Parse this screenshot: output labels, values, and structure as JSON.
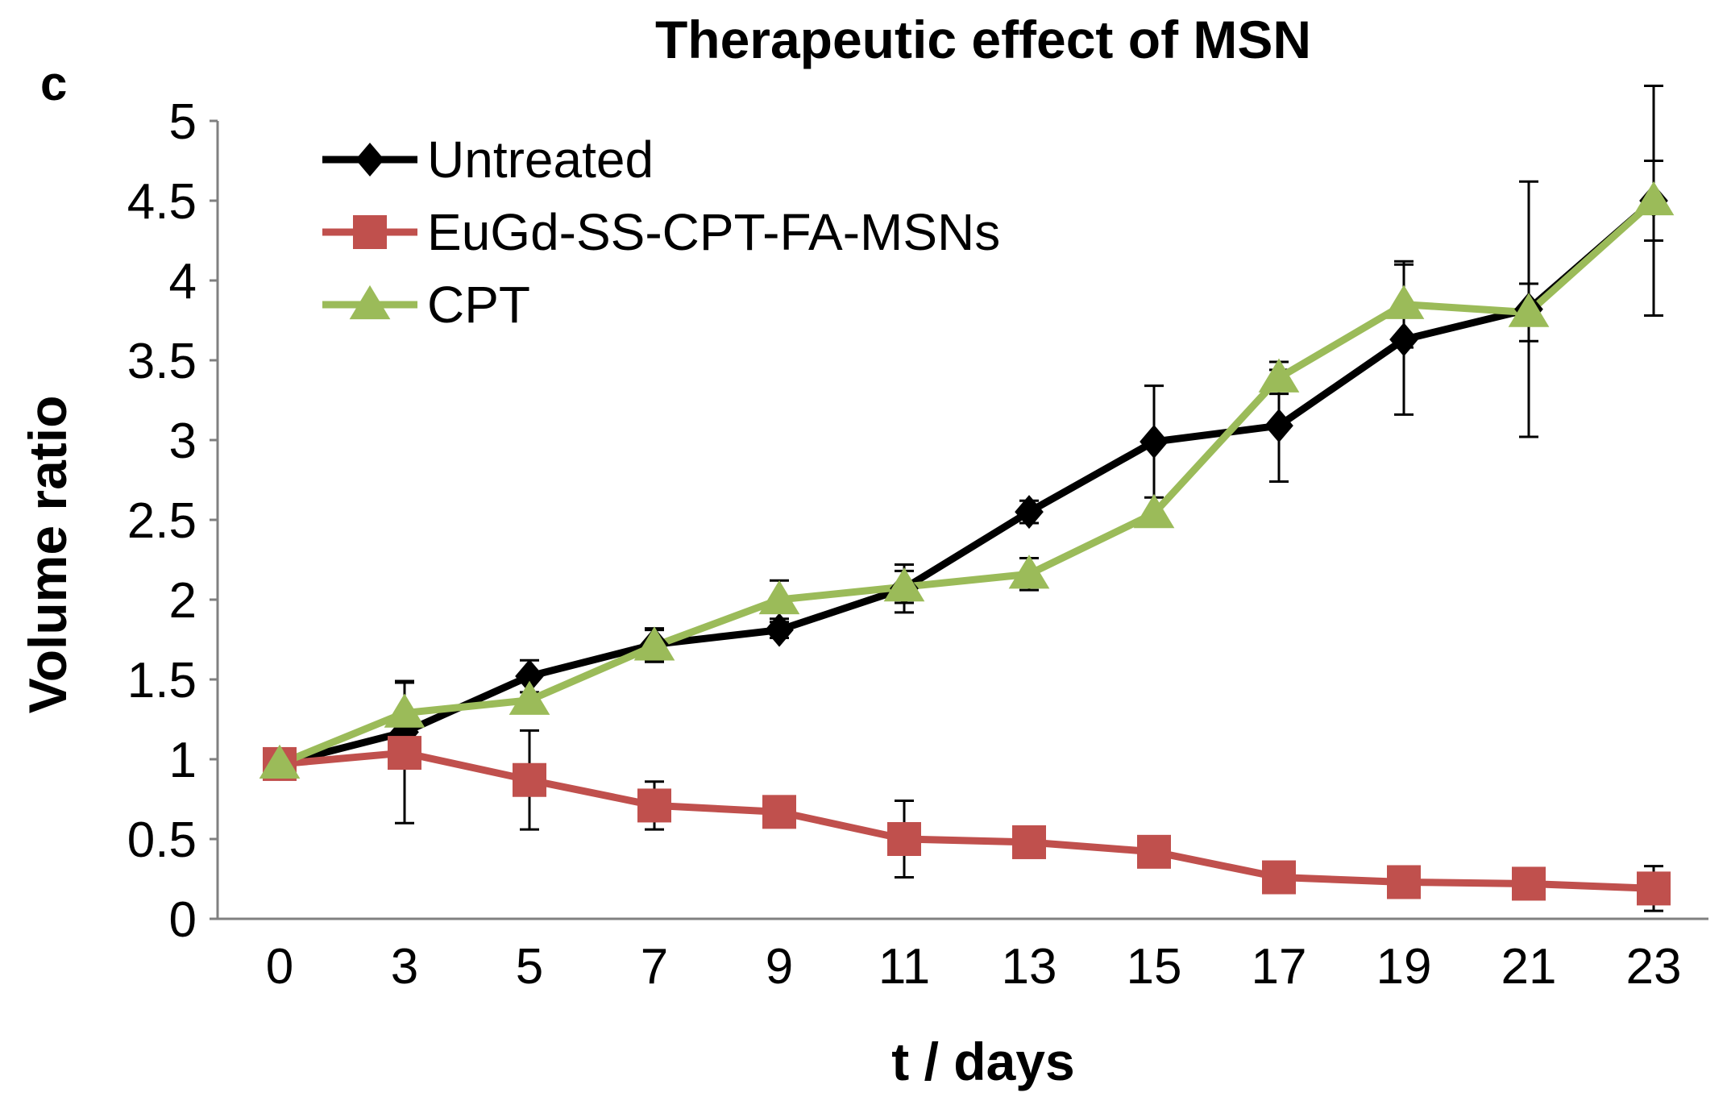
{
  "chart_data": {
    "type": "line",
    "panel_label": "c",
    "title": "Therapeutic effect of MSN",
    "xlabel": "t / days",
    "ylabel": "Volume ratio",
    "x": [
      0,
      3,
      5,
      7,
      9,
      11,
      13,
      15,
      17,
      19,
      21,
      23
    ],
    "x_tick_labels": [
      "0",
      "3",
      "5",
      "7",
      "9",
      "11",
      "13",
      "15",
      "17",
      "19",
      "21",
      "23"
    ],
    "ylim": [
      0,
      5
    ],
    "y_ticks": [
      0,
      0.5,
      1,
      1.5,
      2,
      2.5,
      3,
      3.5,
      4,
      4.5,
      5
    ],
    "y_tick_labels": [
      "0",
      "0.5",
      "1",
      "1.5",
      "2",
      "2.5",
      "3",
      "3.5",
      "4",
      "4.5",
      "5"
    ],
    "grid": false,
    "legend_position": "top-left",
    "series": [
      {
        "name": "Untreated",
        "color": "#000000",
        "marker": "diamond",
        "values": [
          0.97,
          1.17,
          1.52,
          1.72,
          1.81,
          2.07,
          2.55,
          2.99,
          3.09,
          3.63,
          3.82,
          4.5
        ],
        "errors": [
          0.0,
          0.0,
          0.1,
          0.1,
          0.05,
          0.15,
          0.07,
          0.35,
          0.35,
          0.47,
          0.8,
          0.72
        ]
      },
      {
        "name": "EuGd-SS-CPT-FA-MSNs",
        "color": "#C0504D",
        "marker": "square",
        "values": [
          0.97,
          1.04,
          0.87,
          0.71,
          0.67,
          0.5,
          0.48,
          0.42,
          0.26,
          0.23,
          0.22,
          0.19
        ],
        "errors": [
          0.0,
          0.44,
          0.31,
          0.15,
          0.0,
          0.24,
          0.0,
          0.0,
          0.0,
          0.0,
          0.0,
          0.14
        ]
      },
      {
        "name": "CPT",
        "color": "#9BBB59",
        "marker": "triangle",
        "values": [
          0.97,
          1.29,
          1.37,
          1.71,
          2.0,
          2.08,
          2.16,
          2.54,
          3.39,
          3.85,
          3.8,
          4.5
        ],
        "errors": [
          0.0,
          0.2,
          0.0,
          0.1,
          0.12,
          0.1,
          0.1,
          0.0,
          0.1,
          0.27,
          0.18,
          0.25
        ]
      }
    ]
  }
}
